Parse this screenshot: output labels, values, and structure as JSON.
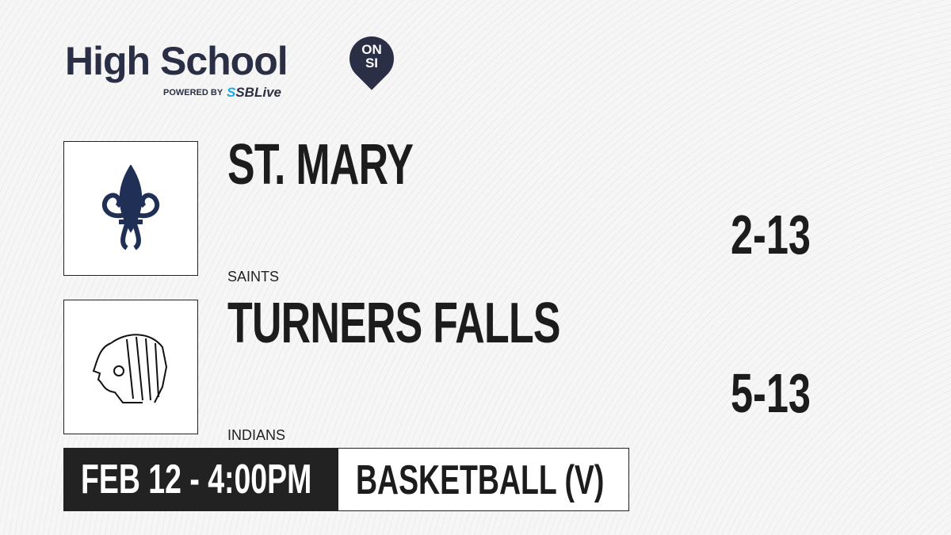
{
  "brand": {
    "title": "High School",
    "badge_top": "ON",
    "badge_bottom": "SI",
    "powered_by": "POWERED BY",
    "partner_prefix": "S",
    "partner": "SBLive"
  },
  "teams": [
    {
      "name": "ST. MARY",
      "mascot": "SAINTS",
      "record": "2-13",
      "logo": "fleur-de-lis-icon",
      "logo_color": "#1f2f55"
    },
    {
      "name": "TURNERS FALLS",
      "mascot": "INDIANS",
      "record": "5-13",
      "logo": "indian-head-icon",
      "logo_color": "#111111"
    }
  ],
  "game": {
    "datetime": "FEB 12 - 4:00PM",
    "sport": "BASKETBALL (V)"
  }
}
